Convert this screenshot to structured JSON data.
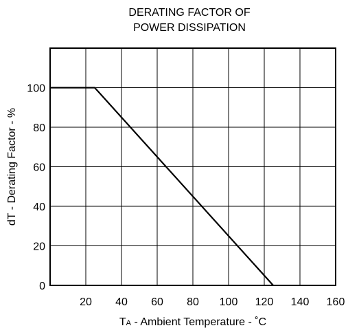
{
  "chart_data": {
    "type": "line",
    "title_lines": [
      "DERATING FACTOR OF",
      "POWER DISSIPATION"
    ],
    "xlabel": {
      "prefix": "T",
      "subscript": "A",
      "rest": " - Ambient Temperature - ˚C"
    },
    "ylabel": "dT - Derating Factor - %",
    "xlim": [
      0,
      160
    ],
    "ylim": [
      0,
      120
    ],
    "x_ticks": [
      20,
      40,
      60,
      80,
      100,
      120,
      140,
      160
    ],
    "y_ticks": [
      0,
      20,
      40,
      60,
      80,
      100
    ],
    "x_grid": [
      0,
      20,
      40,
      60,
      80,
      100,
      120,
      140,
      160
    ],
    "y_grid": [
      0,
      20,
      40,
      60,
      80,
      100,
      120
    ],
    "grid": true,
    "series": [
      {
        "x": [
          0,
          25,
          125
        ],
        "y": [
          100,
          100,
          0
        ]
      }
    ],
    "colors": {
      "line": "#000000",
      "grid": "#000000"
    }
  }
}
